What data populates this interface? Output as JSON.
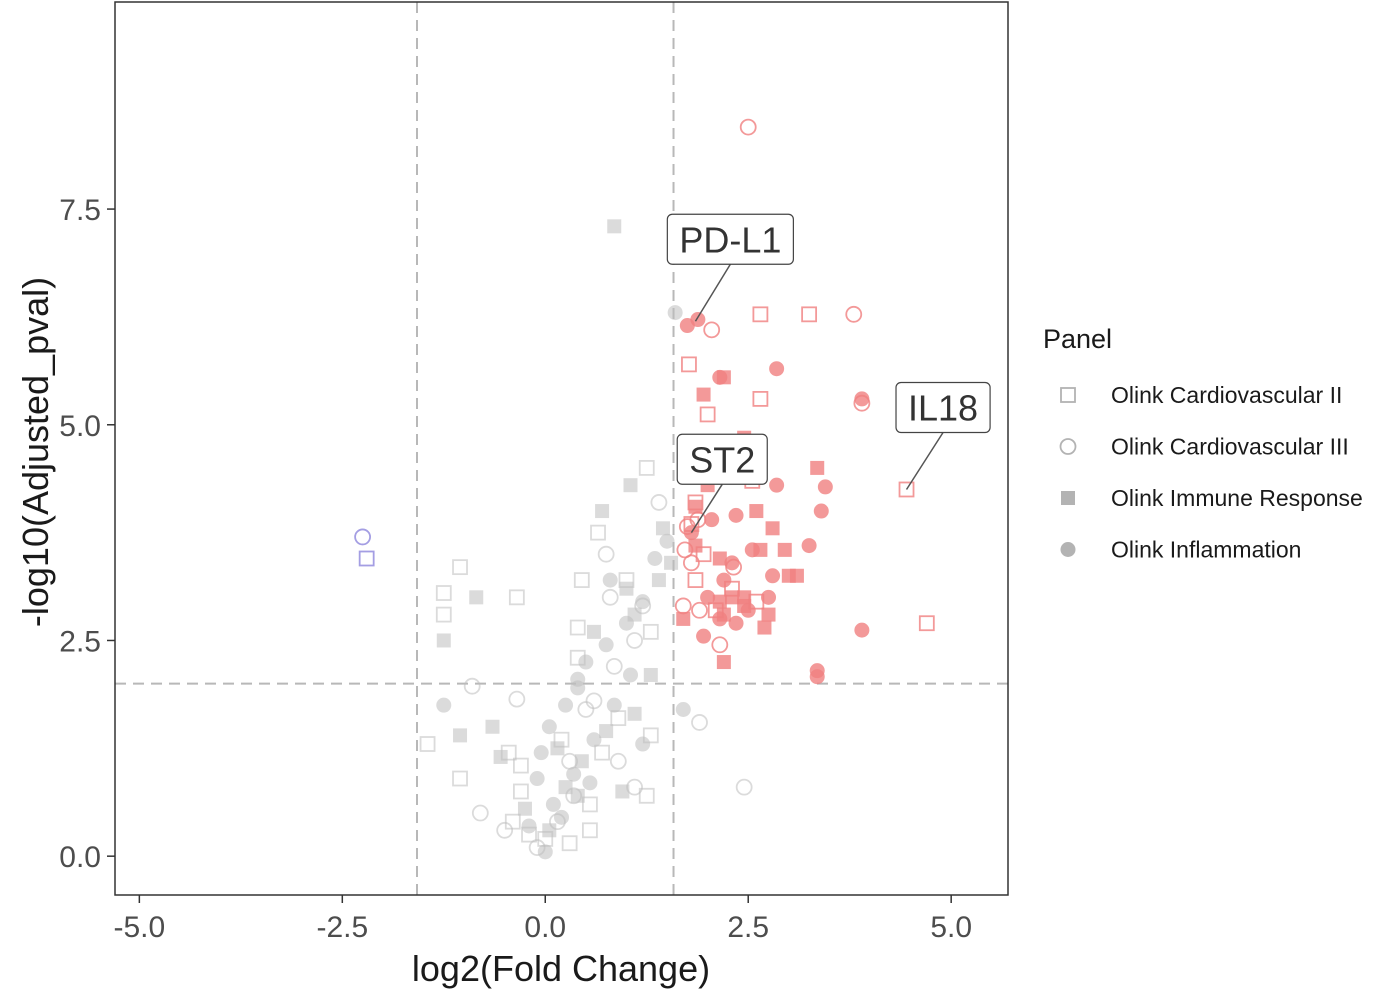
{
  "colors": {
    "up": "#f08080",
    "down": "#9a94e0",
    "ns": "#bdbdbd",
    "threshold_line": "#b8b8b8",
    "frame": "#333333"
  },
  "chart_data": {
    "type": "scatter",
    "title": "",
    "xlabel": "log2(Fold Change)",
    "ylabel": "-log10(Adjusted_pval)",
    "xlim": [
      -5.3,
      5.7
    ],
    "ylim": [
      -0.45,
      9.9
    ],
    "xticks": [
      -5.0,
      -2.5,
      0.0,
      2.5,
      5.0
    ],
    "xtick_labels": [
      "-5.0",
      "-2.5",
      "0.0",
      "2.5",
      "5.0"
    ],
    "yticks": [
      0.0,
      2.5,
      5.0,
      7.5
    ],
    "ytick_labels": [
      "0.0",
      "2.5",
      "5.0",
      "7.5"
    ],
    "grid": false,
    "thresholds": {
      "vlines": [
        -1.58,
        1.58
      ],
      "hline": 2.0
    },
    "legend": {
      "title": "Panel",
      "position": "right",
      "entries": [
        {
          "label": "Olink Cardiovascular II",
          "shape": "square-open"
        },
        {
          "label": "Olink Cardiovascular III",
          "shape": "circle-open"
        },
        {
          "label": "Olink Immune Response",
          "shape": "square-filled"
        },
        {
          "label": "Olink Inflammation",
          "shape": "circle-filled"
        }
      ]
    },
    "annotations": [
      {
        "label": "PD-L1",
        "point": [
          1.85,
          6.2
        ],
        "box_center": [
          2.28,
          7.15
        ]
      },
      {
        "label": "IL18",
        "point": [
          4.45,
          4.25
        ],
        "box_center": [
          4.9,
          5.2
        ]
      },
      {
        "label": "ST2",
        "point": [
          1.8,
          3.75
        ],
        "box_center": [
          2.18,
          4.6
        ]
      }
    ],
    "series": [
      {
        "name": "Olink Cardiovascular II",
        "shape": "square-open",
        "points": [
          {
            "x": -2.2,
            "y": 3.45,
            "g": "down"
          },
          {
            "x": 1.77,
            "y": 5.7,
            "g": "up"
          },
          {
            "x": 2.65,
            "y": 6.28,
            "g": "up"
          },
          {
            "x": 3.25,
            "y": 6.28,
            "g": "up"
          },
          {
            "x": 2.0,
            "y": 5.12,
            "g": "up"
          },
          {
            "x": 2.65,
            "y": 5.3,
            "g": "up"
          },
          {
            "x": 1.85,
            "y": 4.1,
            "g": "up"
          },
          {
            "x": 1.8,
            "y": 3.85,
            "g": "up"
          },
          {
            "x": 1.85,
            "y": 3.2,
            "g": "up"
          },
          {
            "x": 2.55,
            "y": 4.35,
            "g": "up"
          },
          {
            "x": 2.1,
            "y": 2.85,
            "g": "up"
          },
          {
            "x": 2.6,
            "y": 2.95,
            "g": "up"
          },
          {
            "x": 4.45,
            "y": 4.25,
            "g": "up"
          },
          {
            "x": 4.7,
            "y": 2.7,
            "g": "up"
          },
          {
            "x": 2.3,
            "y": 3.1,
            "g": "up"
          },
          {
            "x": 1.95,
            "y": 3.5,
            "g": "up"
          },
          {
            "x": -1.05,
            "y": 3.35,
            "g": "ns"
          },
          {
            "x": -1.25,
            "y": 3.05,
            "g": "ns"
          },
          {
            "x": -1.25,
            "y": 2.8,
            "g": "ns"
          },
          {
            "x": -0.35,
            "y": 3.0,
            "g": "ns"
          },
          {
            "x": 0.65,
            "y": 3.75,
            "g": "ns"
          },
          {
            "x": 0.45,
            "y": 3.2,
            "g": "ns"
          },
          {
            "x": 0.4,
            "y": 2.65,
            "g": "ns"
          },
          {
            "x": 0.4,
            "y": 2.3,
            "g": "ns"
          },
          {
            "x": 1.3,
            "y": 2.6,
            "g": "ns"
          },
          {
            "x": 1.25,
            "y": 4.5,
            "g": "ns"
          },
          {
            "x": 1.0,
            "y": 3.2,
            "g": "ns"
          },
          {
            "x": -1.45,
            "y": 1.3,
            "g": "ns"
          },
          {
            "x": -1.05,
            "y": 0.9,
            "g": "ns"
          },
          {
            "x": -0.45,
            "y": 1.2,
            "g": "ns"
          },
          {
            "x": -0.3,
            "y": 1.05,
            "g": "ns"
          },
          {
            "x": -0.3,
            "y": 0.75,
            "g": "ns"
          },
          {
            "x": 0.2,
            "y": 1.35,
            "g": "ns"
          },
          {
            "x": 0.55,
            "y": 0.6,
            "g": "ns"
          },
          {
            "x": 0.55,
            "y": 0.3,
            "g": "ns"
          },
          {
            "x": 0.9,
            "y": 1.6,
            "g": "ns"
          },
          {
            "x": 1.3,
            "y": 1.4,
            "g": "ns"
          },
          {
            "x": 1.25,
            "y": 0.7,
            "g": "ns"
          },
          {
            "x": -0.4,
            "y": 0.4,
            "g": "ns"
          },
          {
            "x": 0.0,
            "y": 0.2,
            "g": "ns"
          },
          {
            "x": -0.2,
            "y": 0.25,
            "g": "ns"
          },
          {
            "x": 0.3,
            "y": 0.15,
            "g": "ns"
          },
          {
            "x": 0.7,
            "y": 1.2,
            "g": "ns"
          }
        ]
      },
      {
        "name": "Olink Cardiovascular III",
        "shape": "circle-open",
        "points": [
          {
            "x": -2.25,
            "y": 3.7,
            "g": "down"
          },
          {
            "x": 2.5,
            "y": 8.45,
            "g": "up"
          },
          {
            "x": 2.05,
            "y": 6.1,
            "g": "up"
          },
          {
            "x": 3.8,
            "y": 6.28,
            "g": "up"
          },
          {
            "x": 3.9,
            "y": 5.25,
            "g": "up"
          },
          {
            "x": 1.88,
            "y": 3.9,
            "g": "up"
          },
          {
            "x": 1.72,
            "y": 3.55,
            "g": "up"
          },
          {
            "x": 1.8,
            "y": 3.4,
            "g": "up"
          },
          {
            "x": 2.32,
            "y": 3.35,
            "g": "up"
          },
          {
            "x": 1.9,
            "y": 2.85,
            "g": "up"
          },
          {
            "x": 2.15,
            "y": 2.45,
            "g": "up"
          },
          {
            "x": 1.7,
            "y": 2.9,
            "g": "up"
          },
          {
            "x": 1.75,
            "y": 3.82,
            "g": "up"
          },
          {
            "x": 1.4,
            "y": 4.1,
            "g": "ns"
          },
          {
            "x": 0.75,
            "y": 3.5,
            "g": "ns"
          },
          {
            "x": 0.8,
            "y": 3.0,
            "g": "ns"
          },
          {
            "x": 1.2,
            "y": 2.9,
            "g": "ns"
          },
          {
            "x": 1.1,
            "y": 2.5,
            "g": "ns"
          },
          {
            "x": -0.9,
            "y": 1.97,
            "g": "ns"
          },
          {
            "x": -0.35,
            "y": 1.82,
            "g": "ns"
          },
          {
            "x": -0.8,
            "y": 0.5,
            "g": "ns"
          },
          {
            "x": 1.9,
            "y": 1.55,
            "g": "ns"
          },
          {
            "x": 2.45,
            "y": 0.8,
            "g": "ns"
          },
          {
            "x": 0.5,
            "y": 1.7,
            "g": "ns"
          },
          {
            "x": 0.9,
            "y": 1.1,
            "g": "ns"
          },
          {
            "x": 1.1,
            "y": 0.8,
            "g": "ns"
          },
          {
            "x": 0.3,
            "y": 1.1,
            "g": "ns"
          },
          {
            "x": 0.15,
            "y": 0.4,
            "g": "ns"
          },
          {
            "x": -0.5,
            "y": 0.3,
            "g": "ns"
          },
          {
            "x": 0.35,
            "y": 0.7,
            "g": "ns"
          },
          {
            "x": 0.85,
            "y": 2.2,
            "g": "ns"
          },
          {
            "x": 0.6,
            "y": 1.8,
            "g": "ns"
          },
          {
            "x": -0.1,
            "y": 0.1,
            "g": "ns"
          }
        ]
      },
      {
        "name": "Olink Immune Response",
        "shape": "square-filled",
        "points": [
          {
            "x": 2.2,
            "y": 5.55,
            "g": "up"
          },
          {
            "x": 1.95,
            "y": 5.35,
            "g": "up"
          },
          {
            "x": 2.45,
            "y": 4.85,
            "g": "up"
          },
          {
            "x": 3.35,
            "y": 4.5,
            "g": "up"
          },
          {
            "x": 1.85,
            "y": 4.05,
            "g": "up"
          },
          {
            "x": 2.6,
            "y": 4.0,
            "g": "up"
          },
          {
            "x": 2.8,
            "y": 3.8,
            "g": "up"
          },
          {
            "x": 2.65,
            "y": 3.55,
            "g": "up"
          },
          {
            "x": 2.95,
            "y": 3.55,
            "g": "up"
          },
          {
            "x": 2.15,
            "y": 3.45,
            "g": "up"
          },
          {
            "x": 3.0,
            "y": 3.25,
            "g": "up"
          },
          {
            "x": 3.1,
            "y": 3.25,
            "g": "up"
          },
          {
            "x": 2.3,
            "y": 3.0,
            "g": "up"
          },
          {
            "x": 2.15,
            "y": 2.95,
            "g": "up"
          },
          {
            "x": 2.45,
            "y": 2.9,
            "g": "up"
          },
          {
            "x": 1.7,
            "y": 2.75,
            "g": "up"
          },
          {
            "x": 2.2,
            "y": 2.8,
            "g": "up"
          },
          {
            "x": 2.75,
            "y": 2.8,
            "g": "up"
          },
          {
            "x": 2.7,
            "y": 2.65,
            "g": "up"
          },
          {
            "x": 2.2,
            "y": 2.25,
            "g": "up"
          },
          {
            "x": 2.45,
            "y": 3.0,
            "g": "up"
          },
          {
            "x": 1.85,
            "y": 3.6,
            "g": "up"
          },
          {
            "x": 2.0,
            "y": 4.3,
            "g": "up"
          },
          {
            "x": 0.85,
            "y": 7.3,
            "g": "ns"
          },
          {
            "x": 1.05,
            "y": 4.3,
            "g": "ns"
          },
          {
            "x": 0.7,
            "y": 4.0,
            "g": "ns"
          },
          {
            "x": 1.45,
            "y": 3.8,
            "g": "ns"
          },
          {
            "x": 1.55,
            "y": 3.4,
            "g": "ns"
          },
          {
            "x": 1.4,
            "y": 3.2,
            "g": "ns"
          },
          {
            "x": 1.0,
            "y": 3.1,
            "g": "ns"
          },
          {
            "x": 1.1,
            "y": 2.8,
            "g": "ns"
          },
          {
            "x": 0.6,
            "y": 2.6,
            "g": "ns"
          },
          {
            "x": -0.85,
            "y": 3.0,
            "g": "ns"
          },
          {
            "x": -1.25,
            "y": 2.5,
            "g": "ns"
          },
          {
            "x": -1.05,
            "y": 1.4,
            "g": "ns"
          },
          {
            "x": -0.65,
            "y": 1.5,
            "g": "ns"
          },
          {
            "x": -0.55,
            "y": 1.15,
            "g": "ns"
          },
          {
            "x": 0.15,
            "y": 1.25,
            "g": "ns"
          },
          {
            "x": 0.45,
            "y": 1.1,
            "g": "ns"
          },
          {
            "x": 0.75,
            "y": 1.45,
            "g": "ns"
          },
          {
            "x": 1.1,
            "y": 1.65,
            "g": "ns"
          },
          {
            "x": 0.4,
            "y": 0.7,
            "g": "ns"
          },
          {
            "x": -0.25,
            "y": 0.55,
            "g": "ns"
          },
          {
            "x": 0.05,
            "y": 0.3,
            "g": "ns"
          },
          {
            "x": 1.3,
            "y": 2.1,
            "g": "ns"
          },
          {
            "x": 0.95,
            "y": 0.75,
            "g": "ns"
          },
          {
            "x": 0.25,
            "y": 0.8,
            "g": "ns"
          }
        ]
      },
      {
        "name": "Olink Inflammation",
        "shape": "circle-filled",
        "points": [
          {
            "x": 1.75,
            "y": 6.15,
            "g": "up"
          },
          {
            "x": 1.88,
            "y": 6.22,
            "g": "up"
          },
          {
            "x": 2.85,
            "y": 5.65,
            "g": "up"
          },
          {
            "x": 2.15,
            "y": 5.55,
            "g": "up"
          },
          {
            "x": 3.9,
            "y": 5.3,
            "g": "up"
          },
          {
            "x": 2.35,
            "y": 4.5,
            "g": "up"
          },
          {
            "x": 3.45,
            "y": 4.28,
            "g": "up"
          },
          {
            "x": 2.85,
            "y": 4.3,
            "g": "up"
          },
          {
            "x": 3.4,
            "y": 4.0,
            "g": "up"
          },
          {
            "x": 2.35,
            "y": 3.95,
            "g": "up"
          },
          {
            "x": 2.05,
            "y": 3.9,
            "g": "up"
          },
          {
            "x": 3.25,
            "y": 3.6,
            "g": "up"
          },
          {
            "x": 2.55,
            "y": 3.55,
            "g": "up"
          },
          {
            "x": 2.3,
            "y": 3.4,
            "g": "up"
          },
          {
            "x": 2.8,
            "y": 3.25,
            "g": "up"
          },
          {
            "x": 2.75,
            "y": 3.0,
            "g": "up"
          },
          {
            "x": 2.0,
            "y": 3.0,
            "g": "up"
          },
          {
            "x": 2.15,
            "y": 2.75,
            "g": "up"
          },
          {
            "x": 2.35,
            "y": 2.7,
            "g": "up"
          },
          {
            "x": 1.95,
            "y": 2.55,
            "g": "up"
          },
          {
            "x": 3.9,
            "y": 2.62,
            "g": "up"
          },
          {
            "x": 3.35,
            "y": 2.15,
            "g": "up"
          },
          {
            "x": 3.35,
            "y": 2.08,
            "g": "up"
          },
          {
            "x": 1.8,
            "y": 3.75,
            "g": "up"
          },
          {
            "x": 2.2,
            "y": 3.2,
            "g": "up"
          },
          {
            "x": 2.5,
            "y": 2.85,
            "g": "up"
          },
          {
            "x": 1.6,
            "y": 6.3,
            "g": "ns"
          },
          {
            "x": 1.5,
            "y": 3.65,
            "g": "ns"
          },
          {
            "x": 1.35,
            "y": 3.45,
            "g": "ns"
          },
          {
            "x": 0.8,
            "y": 3.2,
            "g": "ns"
          },
          {
            "x": 1.2,
            "y": 2.95,
            "g": "ns"
          },
          {
            "x": 1.0,
            "y": 2.7,
            "g": "ns"
          },
          {
            "x": 0.75,
            "y": 2.45,
            "g": "ns"
          },
          {
            "x": 0.5,
            "y": 2.25,
            "g": "ns"
          },
          {
            "x": 0.4,
            "y": 1.95,
            "g": "ns"
          },
          {
            "x": 0.25,
            "y": 1.75,
            "g": "ns"
          },
          {
            "x": 0.05,
            "y": 1.5,
            "g": "ns"
          },
          {
            "x": -0.05,
            "y": 1.2,
            "g": "ns"
          },
          {
            "x": -0.1,
            "y": 0.9,
            "g": "ns"
          },
          {
            "x": 0.1,
            "y": 0.6,
            "g": "ns"
          },
          {
            "x": 0.2,
            "y": 0.45,
            "g": "ns"
          },
          {
            "x": 0.35,
            "y": 0.95,
            "g": "ns"
          },
          {
            "x": 0.6,
            "y": 1.35,
            "g": "ns"
          },
          {
            "x": 0.85,
            "y": 1.75,
            "g": "ns"
          },
          {
            "x": 1.05,
            "y": 2.1,
            "g": "ns"
          },
          {
            "x": -1.25,
            "y": 1.75,
            "g": "ns"
          },
          {
            "x": 1.7,
            "y": 1.7,
            "g": "ns"
          },
          {
            "x": 1.2,
            "y": 1.3,
            "g": "ns"
          },
          {
            "x": -0.2,
            "y": 0.35,
            "g": "ns"
          },
          {
            "x": 0.0,
            "y": 0.05,
            "g": "ns"
          },
          {
            "x": 0.4,
            "y": 2.05,
            "g": "ns"
          },
          {
            "x": 0.55,
            "y": 0.85,
            "g": "ns"
          }
        ]
      }
    ]
  }
}
